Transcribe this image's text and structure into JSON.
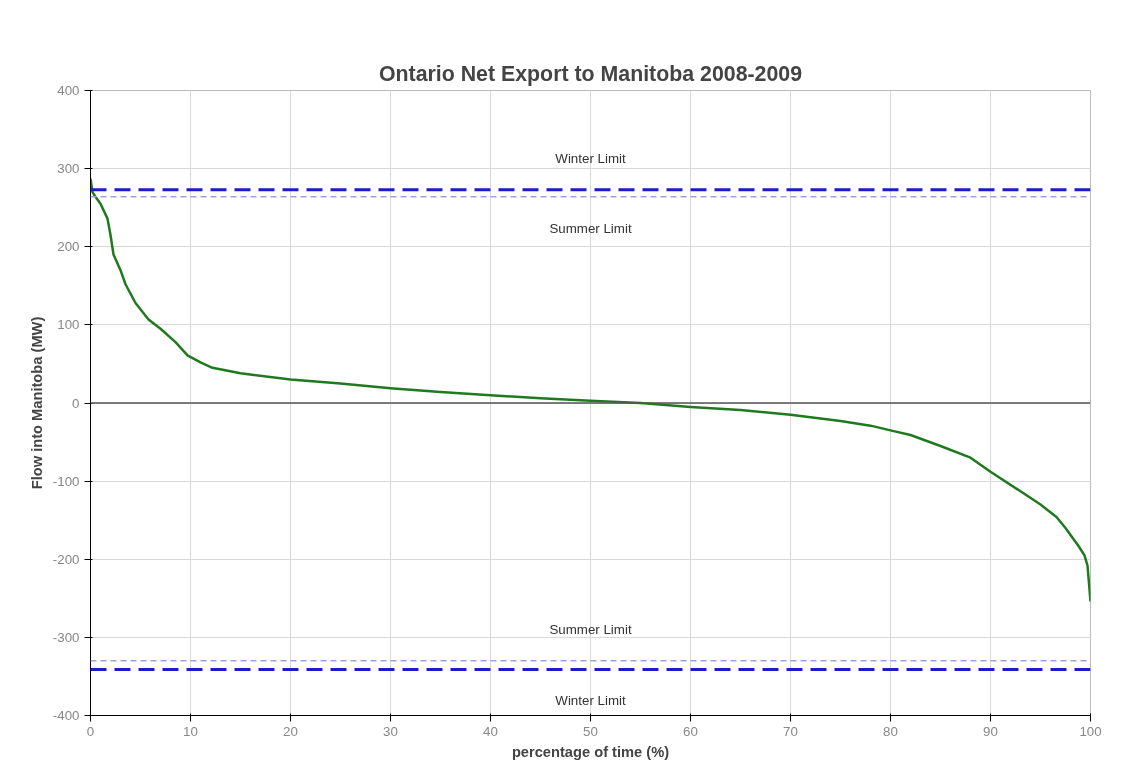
{
  "chart_data": {
    "type": "line",
    "title": "Ontario Net Export to Manitoba 2008-2009",
    "xlabel": "percentage of time (%)",
    "ylabel": "Flow into Manitoba (MW)",
    "xlim": [
      0,
      100
    ],
    "xticks": [
      0,
      10,
      20,
      30,
      40,
      50,
      60,
      70,
      80,
      90,
      100
    ],
    "ylim": [
      -400,
      400
    ],
    "yticks": [
      -400,
      -300,
      -200,
      -100,
      0,
      100,
      200,
      300,
      400
    ],
    "grid": true,
    "series": [
      {
        "color": "#1f7a1f",
        "x": [
          0,
          0.2,
          0.6,
          1,
          1.7,
          2,
          2.3,
          3,
          3.5,
          4.5,
          5.8,
          7,
          8.5,
          9.7,
          11,
          12.2,
          15,
          20,
          25,
          30,
          35,
          40,
          45,
          50,
          55,
          60,
          65,
          70,
          75,
          78,
          80,
          82,
          85,
          88,
          90,
          93,
          95,
          96.6,
          97.5,
          98.8,
          99.4,
          99.7,
          100
        ],
        "values": [
          287,
          270,
          262,
          255,
          236,
          215,
          190,
          170,
          152,
          128,
          107,
          95,
          78,
          61,
          52,
          45,
          38,
          30,
          25,
          19,
          14,
          10,
          6,
          3,
          0,
          -5,
          -9,
          -15,
          -23,
          -29,
          -35,
          -41,
          -55,
          -70,
          -88,
          -113,
          -130,
          -146,
          -160,
          -183,
          -195,
          -208,
          -254
        ]
      }
    ],
    "ref_lines": [
      {
        "axis": "y",
        "value": 273,
        "label": "Winter Limit",
        "color": "#1c1cc8",
        "line_style": "dashed"
      },
      {
        "axis": "y",
        "value": 264,
        "label": "Summer Limit",
        "color": "#a0a0e6",
        "line_style": "dotted"
      },
      {
        "axis": "y",
        "value": -330,
        "label": "Summer Limit",
        "color": "#a0a0e6",
        "line_style": "dotted"
      },
      {
        "axis": "y",
        "value": -341,
        "label": "Winter Limit",
        "color": "#1c1cc8",
        "line_style": "dashed"
      }
    ]
  }
}
